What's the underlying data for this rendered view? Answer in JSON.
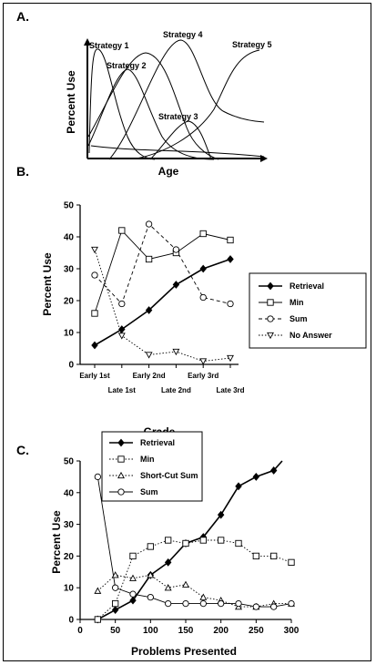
{
  "panelA": {
    "label": "A.",
    "ylabel": "Percent Use",
    "xlabel": "Age",
    "curves": [
      {
        "name": "Strategy 1"
      },
      {
        "name": "Strategy 2"
      },
      {
        "name": "Strategy 3"
      },
      {
        "name": "Strategy 4"
      },
      {
        "name": "Strategy 5"
      }
    ]
  },
  "chart_data": [
    {
      "type": "line",
      "panel": "B.",
      "title": "",
      "xlabel": "Grade",
      "ylabel": "Percent Use",
      "categories": [
        "Early 1st",
        "Late 1st",
        "Early 2nd",
        "Late 2nd",
        "Early 3rd",
        "Late 3rd"
      ],
      "ylim": [
        0,
        50
      ],
      "yticks": [
        0,
        10,
        20,
        30,
        40,
        50
      ],
      "legend_position": "right",
      "series": [
        {
          "name": "Retrieval",
          "values": [
            6,
            11,
            17,
            25,
            30,
            33
          ],
          "marker": "filled-diamond",
          "dash": "solid"
        },
        {
          "name": "Min",
          "values": [
            16,
            42,
            33,
            35,
            41,
            39
          ],
          "marker": "open-square",
          "dash": "solid-thin"
        },
        {
          "name": "Sum",
          "values": [
            28,
            19,
            44,
            36,
            21,
            19
          ],
          "marker": "open-circle",
          "dash": "dashed"
        },
        {
          "name": "No Answer",
          "values": [
            36,
            9,
            3,
            4,
            1,
            2
          ],
          "marker": "open-triangle-down",
          "dash": "dotted"
        }
      ]
    },
    {
      "type": "line",
      "panel": "C.",
      "title": "",
      "xlabel": "Problems Presented",
      "ylabel": "Percent Use",
      "xlim": [
        0,
        300
      ],
      "xticks": [
        0,
        50,
        100,
        150,
        200,
        250,
        300
      ],
      "ylim": [
        0,
        50
      ],
      "yticks": [
        0,
        10,
        20,
        30,
        40,
        50
      ],
      "legend_position": "top-left",
      "series": [
        {
          "name": "Retrieval",
          "marker": "filled-diamond",
          "dash": "solid",
          "x": [
            25,
            50,
            75,
            100,
            125,
            150,
            175,
            200,
            225,
            250,
            275,
            287
          ],
          "y": [
            0,
            3,
            6,
            14,
            18,
            24,
            26,
            33,
            42,
            45,
            47,
            50
          ],
          "marked": [
            true,
            true,
            true,
            true,
            true,
            true,
            true,
            true,
            true,
            true,
            true,
            false
          ]
        },
        {
          "name": "Min",
          "marker": "open-square",
          "dash": "dotted",
          "x": [
            25,
            50,
            75,
            100,
            125,
            150,
            175,
            200,
            225,
            250,
            275,
            300
          ],
          "y": [
            0,
            5,
            20,
            23,
            25,
            24,
            25,
            25,
            24,
            20,
            20,
            18
          ]
        },
        {
          "name": "Short-Cut Sum",
          "marker": "open-triangle",
          "dash": "dotted",
          "x": [
            25,
            50,
            75,
            100,
            125,
            150,
            175,
            200,
            225,
            250,
            275,
            300
          ],
          "y": [
            9,
            14,
            13,
            14,
            10,
            11,
            7,
            6,
            4,
            4,
            5,
            5
          ]
        },
        {
          "name": "Sum",
          "marker": "open-circle",
          "dash": "solid-thin",
          "x": [
            25,
            50,
            75,
            100,
            125,
            150,
            175,
            200,
            225,
            250,
            275,
            300
          ],
          "y": [
            45,
            10,
            8,
            7,
            5,
            5,
            5,
            5,
            5,
            4,
            4,
            5
          ]
        }
      ]
    }
  ]
}
